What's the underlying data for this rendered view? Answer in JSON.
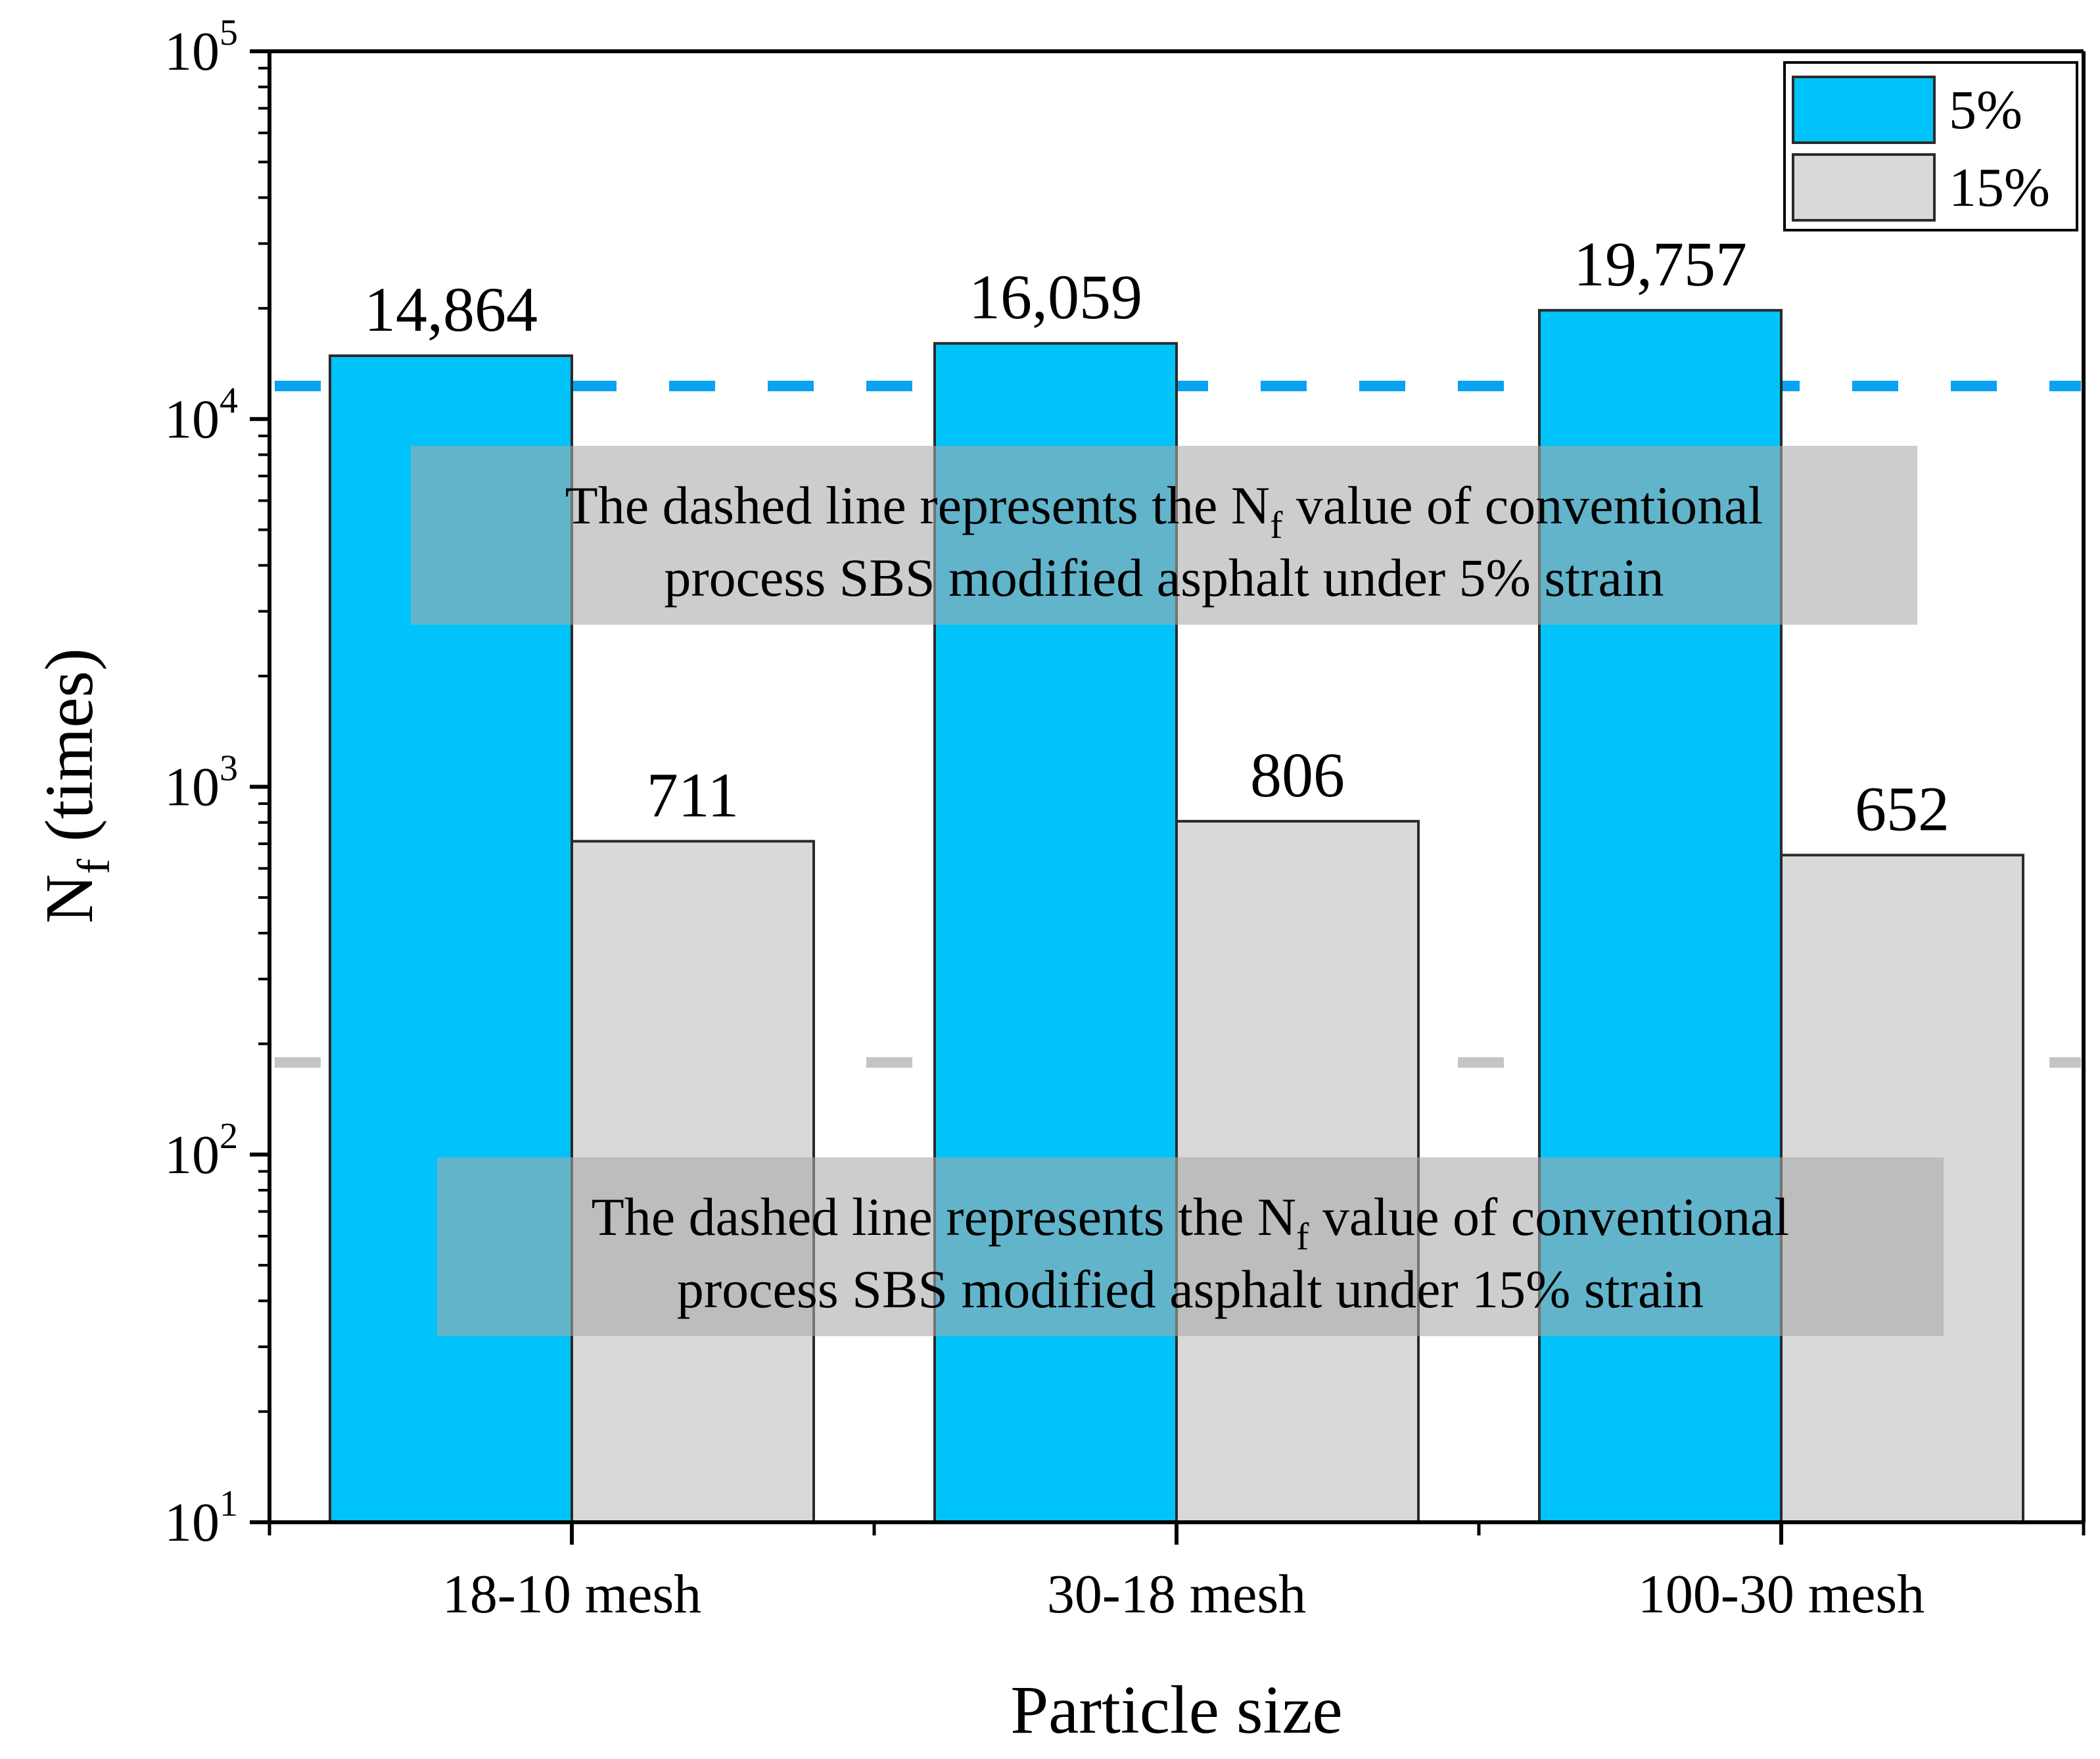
{
  "chart_data": {
    "type": "bar",
    "scale": "log",
    "categories": [
      "18-10 mesh",
      "30-18 mesh",
      "100-30 mesh"
    ],
    "series": [
      {
        "name": "5%",
        "color": "#00c3f9",
        "values": [
          14864,
          16059,
          19757
        ],
        "labels": [
          "14,864",
          "16,059",
          "19,757"
        ]
      },
      {
        "name": "15%",
        "color": "#d9d9d9",
        "values": [
          711,
          806,
          652
        ],
        "labels": [
          "711",
          "806",
          "652"
        ]
      }
    ],
    "xlabel": "Particle size",
    "ylabel": {
      "main": "N",
      "sub": "f",
      "rest": " (times)"
    },
    "ylim": [
      10,
      100000
    ],
    "yticks": [
      {
        "value": 10,
        "base": "10",
        "exp": "1"
      },
      {
        "value": 100,
        "base": "10",
        "exp": "2"
      },
      {
        "value": 1000,
        "base": "10",
        "exp": "3"
      },
      {
        "value": 10000,
        "base": "10",
        "exp": "4"
      },
      {
        "value": 100000,
        "base": "10",
        "exp": "5"
      }
    ],
    "reference_lines": [
      {
        "series": "5%",
        "value": 12300,
        "color": "#0aa2f2"
      },
      {
        "series": "15%",
        "value": 178,
        "color": "#c4c4c4"
      }
    ],
    "annotations": [
      {
        "line1_a": "The dashed line represents the N",
        "line1_sub": "f",
        "line1_b": " value of conventional",
        "line2": "process SBS modified asphalt under 5% strain"
      },
      {
        "line1_a": "The dashed line represents the N",
        "line1_sub": "f",
        "line1_b": " value of conventional",
        "line2": "process SBS modified asphalt under 15% strain"
      }
    ],
    "legend": {
      "position": "top-right",
      "entries": [
        "5%",
        "15%"
      ]
    }
  }
}
